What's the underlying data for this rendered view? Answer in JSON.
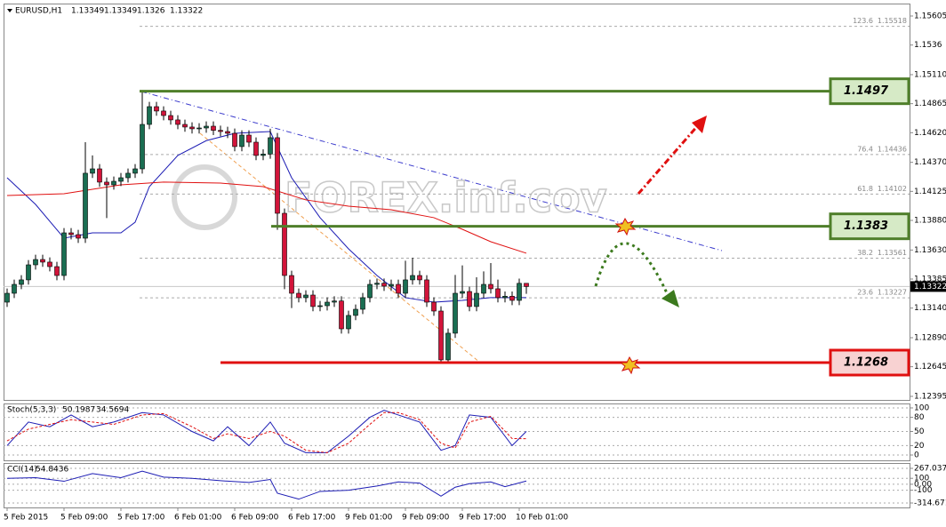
{
  "chart_data": [
    {
      "type": "candlestick",
      "title": "EURUSD,H1",
      "up_color": "#1a6e52",
      "down_color": "#d2143a",
      "ylim": [
        1.12365,
        1.1571
      ],
      "yticks": [
        1.15605,
        1.1536,
        {
          "value": 1.1511,
          "label": "1.15110"
        },
        1.14865,
        {
          "value": 1.1462,
          "label": "1.14620"
        },
        {
          "value": 1.1437,
          "label": "1.14370"
        },
        1.14125,
        {
          "value": 1.1388,
          "label": "1.13880"
        },
        {
          "value": 1.1363,
          "label": "1.13630"
        },
        1.13385,
        {
          "value": 1.1314,
          "label": "1.13140"
        },
        {
          "value": 1.1289,
          "label": "1.12890"
        },
        1.12645,
        1.12395
      ],
      "xticks": [
        {
          "value": 0,
          "label": "5 Feb 2015"
        },
        {
          "value": 8,
          "label": "5 Feb 09:00"
        },
        {
          "value": 16,
          "label": "5 Feb 17:00"
        },
        {
          "value": 24,
          "label": "6 Feb 01:00"
        },
        {
          "value": 32,
          "label": "6 Feb 09:00"
        },
        {
          "value": 40,
          "label": "6 Feb 17:00"
        },
        {
          "value": 48,
          "label": "9 Feb 01:00"
        },
        {
          "value": 56,
          "label": "9 Feb 09:00"
        },
        {
          "value": 64,
          "label": "9 Feb 17:00"
        },
        {
          "value": 72,
          "label": "10 Feb 01:00"
        }
      ],
      "open": [
        1.1319,
        1.13265,
        1.1334,
        1.13378,
        1.13505,
        1.1355,
        1.13528,
        1.1349,
        1.13415,
        1.13775,
        1.1376,
        1.1373,
        1.14278,
        1.14315,
        1.14203,
        1.1418,
        1.1421,
        1.1424,
        1.14278,
        1.14315,
        1.1469,
        1.1484,
        1.14803,
        1.14765,
        1.14728,
        1.1469,
        1.14668,
        1.14653,
        1.1466,
        1.14675,
        1.1464,
        1.1463,
        1.14615,
        1.14503,
        1.146,
        1.1454,
        1.14428,
        1.1444,
        1.14578,
        1.1394,
        1.13415,
        1.13265,
        1.13228,
        1.1325,
        1.13153,
        1.1316,
        1.1319,
        1.132,
        1.12965,
        1.13078,
        1.1313,
        1.13228,
        1.1334,
        1.1335,
        1.13325,
        1.1334,
        1.13265,
        1.13378,
        1.13415,
        1.13378,
        1.1319,
        1.13115,
        1.12703,
        1.12928,
        1.13265,
        1.1328,
        1.13153,
        1.13265,
        1.1334,
        1.13303,
        1.13228,
        1.1324,
        1.13205,
        1.13349
      ],
      "high": [
        1.13305,
        1.1338,
        1.13418,
        1.13545,
        1.1359,
        1.1359,
        1.13568,
        1.1353,
        1.13815,
        1.13815,
        1.138,
        1.1454,
        1.14428,
        1.14355,
        1.14243,
        1.1425,
        1.1428,
        1.14318,
        1.14355,
        1.1497,
        1.1488,
        1.1488,
        1.14843,
        1.14805,
        1.14768,
        1.1473,
        1.14708,
        1.147,
        1.14715,
        1.14715,
        1.1468,
        1.1467,
        1.14655,
        1.1464,
        1.1464,
        1.1458,
        1.1448,
        1.14653,
        1.14618,
        1.1398,
        1.13455,
        1.13305,
        1.1329,
        1.1329,
        1.132,
        1.1323,
        1.1324,
        1.1324,
        1.13118,
        1.1317,
        1.13268,
        1.1338,
        1.1339,
        1.1339,
        1.1338,
        1.1338,
        1.1354,
        1.13565,
        1.13455,
        1.13418,
        1.1323,
        1.13155,
        1.12968,
        1.1342,
        1.135,
        1.1332,
        1.134,
        1.1345,
        1.1352,
        1.1338,
        1.1328,
        1.1328,
        1.13389,
        1.13349
      ],
      "low": [
        1.1315,
        1.13225,
        1.133,
        1.13338,
        1.13465,
        1.13488,
        1.1345,
        1.13375,
        1.13375,
        1.1372,
        1.1369,
        1.1369,
        1.14238,
        1.14163,
        1.139,
        1.1414,
        1.1417,
        1.142,
        1.14238,
        1.14275,
        1.1465,
        1.14763,
        1.14725,
        1.14688,
        1.1465,
        1.14628,
        1.14613,
        1.14613,
        1.1462,
        1.146,
        1.1459,
        1.14575,
        1.14463,
        1.14463,
        1.145,
        1.14388,
        1.14388,
        1.144,
        1.138,
        1.133,
        1.1314,
        1.13188,
        1.13188,
        1.13113,
        1.13113,
        1.1312,
        1.1315,
        1.12925,
        1.12925,
        1.13038,
        1.1309,
        1.13188,
        1.133,
        1.13285,
        1.13285,
        1.13225,
        1.13225,
        1.13338,
        1.13338,
        1.1315,
        1.13075,
        1.12686,
        1.12686,
        1.12888,
        1.13225,
        1.13113,
        1.13113,
        1.13225,
        1.13263,
        1.13188,
        1.13188,
        1.13165,
        1.13165,
        1.1326
      ],
      "close": [
        1.13265,
        1.1334,
        1.13378,
        1.13505,
        1.1355,
        1.13528,
        1.1349,
        1.13415,
        1.13775,
        1.1376,
        1.1373,
        1.14278,
        1.14315,
        1.14203,
        1.1418,
        1.1421,
        1.1424,
        1.14278,
        1.14315,
        1.1469,
        1.1484,
        1.14803,
        1.14765,
        1.14728,
        1.1469,
        1.14668,
        1.14653,
        1.1466,
        1.14675,
        1.1464,
        1.1463,
        1.14615,
        1.14503,
        1.146,
        1.1454,
        1.14428,
        1.1444,
        1.14578,
        1.1394,
        1.13415,
        1.13265,
        1.13228,
        1.1325,
        1.13153,
        1.1316,
        1.1319,
        1.132,
        1.12965,
        1.13078,
        1.1313,
        1.13228,
        1.1334,
        1.1335,
        1.13325,
        1.1334,
        1.13265,
        1.13378,
        1.13415,
        1.13378,
        1.1319,
        1.13115,
        1.12703,
        1.12928,
        1.13265,
        1.1328,
        1.13153,
        1.13265,
        1.1334,
        1.13303,
        1.13228,
        1.1324,
        1.13205,
        1.13349,
        1.13322
      ],
      "series": [
        {
          "color": "#1c1cb4",
          "x": [
            0,
            4,
            8,
            12,
            16,
            18,
            20,
            24,
            28,
            32,
            37,
            40,
            44,
            48,
            52,
            56,
            60,
            64,
            68,
            73
          ],
          "values": [
            1.1424,
            1.14015,
            1.1373,
            1.13775,
            1.13775,
            1.13865,
            1.14165,
            1.14428,
            1.14553,
            1.14615,
            1.1463,
            1.1424,
            1.13903,
            1.1364,
            1.13415,
            1.13228,
            1.1319,
            1.13205,
            1.13228,
            1.13228
          ]
        },
        {
          "color": "#e01010",
          "x": [
            0,
            8,
            16,
            22,
            30,
            36,
            42,
            48,
            54,
            60,
            64,
            68,
            73
          ],
          "values": [
            1.1409,
            1.14105,
            1.1418,
            1.14203,
            1.14195,
            1.14165,
            1.14053,
            1.14,
            1.1397,
            1.13903,
            1.13805,
            1.137,
            1.13603
          ]
        }
      ],
      "levels": [
        {
          "value": 1.1497,
          "color": "#4f7f2a",
          "fill": "#d6eac6"
        },
        {
          "value": 1.1383,
          "color": "#4f7f2a",
          "fill": "#d6eac6"
        },
        {
          "value": 1.1268,
          "color": "#e01010",
          "fill": "#f8d2d2"
        }
      ],
      "fib": [
        {
          "level": 123.6,
          "price": 1.15518
        },
        {
          "level": 76.4,
          "price": 1.14436
        },
        {
          "level": 61.8,
          "price": 1.14102
        },
        {
          "level": 38.2,
          "price": 1.13561
        },
        {
          "level": 23.6,
          "price": 1.13227
        }
      ],
      "watermark": "FOREX.inf.cov"
    },
    {
      "type": "line",
      "title": "Stoch(5,3,3)",
      "ylim": [
        -11.3,
        109.4
      ],
      "yticks": [
        100,
        80,
        50,
        20,
        0
      ],
      "x": [
        0,
        3,
        6,
        9,
        12,
        15,
        19,
        22,
        26,
        29,
        31,
        34,
        37,
        39,
        42,
        45,
        48,
        51,
        53,
        55,
        58,
        61,
        63,
        65,
        68,
        71,
        73
      ],
      "series": [
        {
          "color": "#1c1cb4",
          "values": [
            20,
            70,
            60,
            85,
            60,
            70,
            90,
            85,
            50,
            30,
            60,
            20,
            70,
            25,
            5,
            5,
            40,
            80,
            95,
            85,
            70,
            10,
            20,
            85,
            80,
            20,
            50.1987
          ]
        },
        {
          "color": "#e01010",
          "dash": true,
          "values": [
            30,
            55,
            65,
            75,
            70,
            65,
            85,
            88,
            60,
            35,
            45,
            35,
            50,
            40,
            10,
            5,
            25,
            65,
            90,
            90,
            75,
            25,
            15,
            70,
            82,
            35,
            34.5694
          ]
        }
      ]
    },
    {
      "type": "line",
      "title": "CCI(14)",
      "ylim": [
        -389.3,
        356.6
      ],
      "yticks": [
        267.0376,
        100,
        {
          "value": 0,
          "label": "0.00"
        },
        -100,
        -314.6711
      ],
      "x": [
        0,
        4,
        8,
        12,
        16,
        19,
        22,
        26,
        30,
        34,
        37,
        38,
        41,
        44,
        48,
        52,
        55,
        58,
        61,
        63,
        65,
        68,
        70,
        73
      ],
      "series": [
        {
          "color": "#1c1cb4",
          "values": [
            100,
            110,
            50,
            180,
            110,
            220,
            120,
            100,
            60,
            30,
            80,
            -150,
            -250,
            -120,
            -100,
            -30,
            40,
            20,
            -200,
            -50,
            10,
            40,
            -40,
            54.8436
          ]
        }
      ]
    }
  ]
}
